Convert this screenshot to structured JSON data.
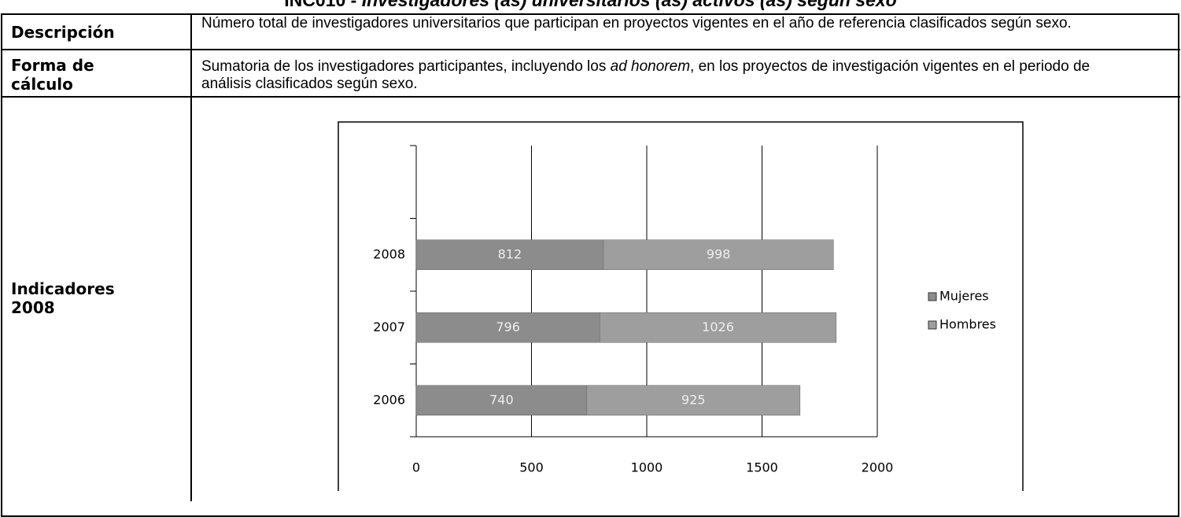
{
  "title": [
    "INC010 - ",
    "Investigadores (as) universitarios (as) activos (as) según sexo"
  ],
  "table": {
    "rows": [
      {
        "label": "Descripción",
        "text": [
          "Número total de investigadores universitarios que participan en proyectos vigentes en el año de referencia clasificados según sexo."
        ]
      },
      {
        "label": "Forma de cálculo",
        "text": [
          "Sumatoria de los  investigadores participantes, incluyendo los ",
          "ad honorem",
          ", en los proyectos de investigación vigentes en el periodo de análisis clasificados según sexo."
        ]
      },
      {
        "label": "Indicadores 2008"
      }
    ]
  },
  "chart_data": {
    "type": "stacked-bar-horizontal",
    "categories": [
      "2006",
      "2007",
      "2008"
    ],
    "series": [
      {
        "name": "Mujeres",
        "color": "#8c8c8c",
        "values": [
          740,
          796,
          812
        ]
      },
      {
        "name": "Hombres",
        "color": "#9e9e9e",
        "values": [
          925,
          1026,
          998
        ]
      }
    ],
    "xlim": [
      0,
      2000
    ],
    "xticks": [
      0,
      500,
      1000,
      1500,
      2000
    ],
    "grid": true,
    "legend": "right"
  }
}
